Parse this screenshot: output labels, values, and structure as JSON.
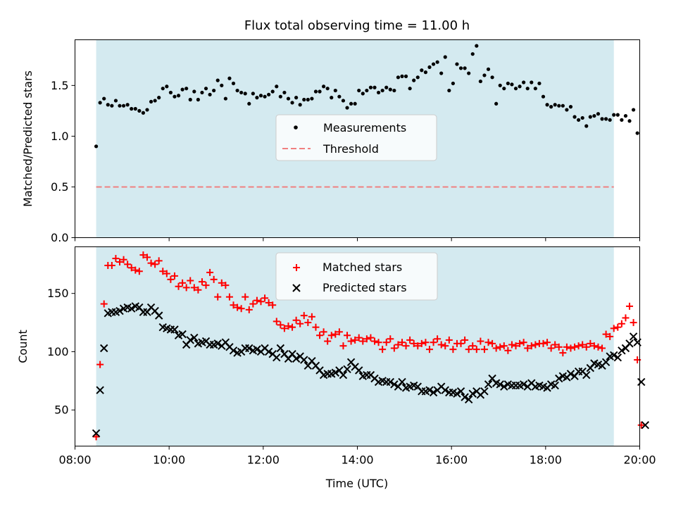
{
  "title": "Flux total observing time = 11.00 h",
  "colors": {
    "band": "#d4eaf0",
    "measurement": "#000000",
    "threshold": "#f08080",
    "matched": "#ff0000",
    "predicted": "#000000"
  },
  "chart_data": [
    {
      "type": "scatter",
      "panel": "top",
      "ylabel": "Matched/Predicted stars",
      "xlabel": "",
      "xlim": [
        "08:00",
        "20:00"
      ],
      "ylim": [
        0,
        1.95
      ],
      "yticks": [
        "0.0",
        "0.5",
        "1.0",
        "1.5"
      ],
      "shaded_range": [
        "08:27",
        "19:27"
      ],
      "legend": {
        "placement": "center",
        "entries": [
          "Measurements",
          "Threshold"
        ]
      },
      "threshold": 0.5,
      "series": [
        {
          "name": "Measurements",
          "start": "08:27",
          "interval_min": 5,
          "values": [
            0.9,
            1.33,
            1.37,
            1.31,
            1.3,
            1.35,
            1.3,
            1.3,
            1.31,
            1.27,
            1.27,
            1.25,
            1.23,
            1.26,
            1.34,
            1.35,
            1.38,
            1.47,
            1.49,
            1.43,
            1.39,
            1.4,
            1.46,
            1.47,
            1.36,
            1.44,
            1.36,
            1.43,
            1.47,
            1.41,
            1.45,
            1.55,
            1.5,
            1.37,
            1.57,
            1.52,
            1.45,
            1.43,
            1.42,
            1.32,
            1.42,
            1.38,
            1.4,
            1.39,
            1.41,
            1.44,
            1.49,
            1.39,
            1.43,
            1.37,
            1.33,
            1.38,
            1.31,
            1.36,
            1.36,
            1.37,
            1.44,
            1.44,
            1.49,
            1.47,
            1.38,
            1.45,
            1.39,
            1.35,
            1.28,
            1.32,
            1.32,
            1.45,
            1.42,
            1.45,
            1.48,
            1.48,
            1.43,
            1.45,
            1.48,
            1.46,
            1.45,
            1.58,
            1.59,
            1.59,
            1.47,
            1.55,
            1.58,
            1.65,
            1.63,
            1.68,
            1.71,
            1.73,
            1.62,
            1.78,
            1.45,
            1.52,
            1.71,
            1.67,
            1.67,
            1.62,
            1.81,
            1.89,
            1.54,
            1.6,
            1.66,
            1.58,
            1.32,
            1.5,
            1.47,
            1.52,
            1.51,
            1.47,
            1.49,
            1.53,
            1.47,
            1.53,
            1.47,
            1.52,
            1.39,
            1.31,
            1.29,
            1.31,
            1.3,
            1.3,
            1.26,
            1.29,
            1.19,
            1.16,
            1.18,
            1.1,
            1.19,
            1.2,
            1.22,
            1.17,
            1.17,
            1.16,
            1.21,
            1.21,
            1.16,
            1.2,
            1.15,
            1.26,
            1.03
          ]
        }
      ]
    },
    {
      "type": "scatter",
      "panel": "bottom",
      "ylabel": "Count",
      "xlabel": "Time (UTC)",
      "xlim": [
        "08:00",
        "20:00"
      ],
      "ylim": [
        19,
        190
      ],
      "xticks": [
        "08:00",
        "10:00",
        "12:00",
        "14:00",
        "16:00",
        "18:00",
        "20:00"
      ],
      "yticks": [
        "50",
        "100",
        "150"
      ],
      "shaded_range": [
        "08:27",
        "19:27"
      ],
      "legend": {
        "placement": "upper center",
        "entries": [
          "Matched stars",
          "Predicted stars"
        ]
      },
      "series": [
        {
          "name": "Matched stars",
          "start": "08:27",
          "interval_min": 5,
          "values": [
            27,
            89,
            141,
            174,
            174,
            180,
            177,
            179,
            175,
            172,
            170,
            169,
            183,
            181,
            176,
            175,
            178,
            169,
            167,
            162,
            165,
            156,
            159,
            155,
            161,
            155,
            153,
            160,
            157,
            168,
            162,
            147,
            159,
            157,
            147,
            140,
            138,
            137,
            147,
            136,
            141,
            144,
            143,
            146,
            142,
            140,
            126,
            123,
            120,
            122,
            121,
            127,
            124,
            131,
            125,
            130,
            121,
            114,
            117,
            109,
            114,
            115,
            117,
            105,
            114,
            109,
            110,
            112,
            109,
            111,
            112,
            109,
            108,
            102,
            108,
            111,
            103,
            106,
            108,
            105,
            110,
            107,
            105,
            107,
            108,
            102,
            108,
            111,
            106,
            105,
            110,
            102,
            107,
            107,
            110,
            102,
            105,
            102,
            109,
            102,
            108,
            107,
            103,
            104,
            105,
            101,
            106,
            105,
            107,
            108,
            103,
            105,
            106,
            107,
            107,
            108,
            103,
            106,
            104,
            99,
            104,
            103,
            104,
            105,
            106,
            104,
            107,
            105,
            104,
            103,
            115,
            113,
            120,
            121,
            124,
            129,
            139,
            125,
            93,
            37
          ]
        },
        {
          "name": "Predicted stars",
          "start": "08:27",
          "interval_min": 5,
          "values": [
            30,
            67,
            103,
            133,
            134,
            134,
            135,
            137,
            138,
            137,
            139,
            138,
            134,
            134,
            138,
            135,
            131,
            121,
            120,
            119,
            119,
            114,
            115,
            106,
            110,
            112,
            107,
            108,
            109,
            106,
            106,
            107,
            105,
            108,
            104,
            101,
            99,
            100,
            103,
            103,
            101,
            102,
            100,
            103,
            100,
            98,
            95,
            103,
            98,
            94,
            98,
            94,
            96,
            93,
            88,
            92,
            88,
            84,
            80,
            81,
            81,
            82,
            84,
            80,
            85,
            91,
            87,
            84,
            79,
            80,
            80,
            77,
            74,
            75,
            74,
            74,
            72,
            70,
            74,
            69,
            70,
            71,
            70,
            66,
            66,
            67,
            65,
            67,
            70,
            67,
            65,
            65,
            64,
            66,
            61,
            59,
            64,
            66,
            63,
            66,
            72,
            77,
            73,
            72,
            70,
            72,
            71,
            71,
            71,
            72,
            70,
            73,
            70,
            71,
            70,
            69,
            72,
            71,
            77,
            79,
            78,
            81,
            79,
            83,
            83,
            80,
            86,
            90,
            89,
            88,
            91,
            96,
            97,
            95,
            101,
            103,
            107,
            113,
            108,
            74,
            37
          ]
        }
      ]
    }
  ]
}
